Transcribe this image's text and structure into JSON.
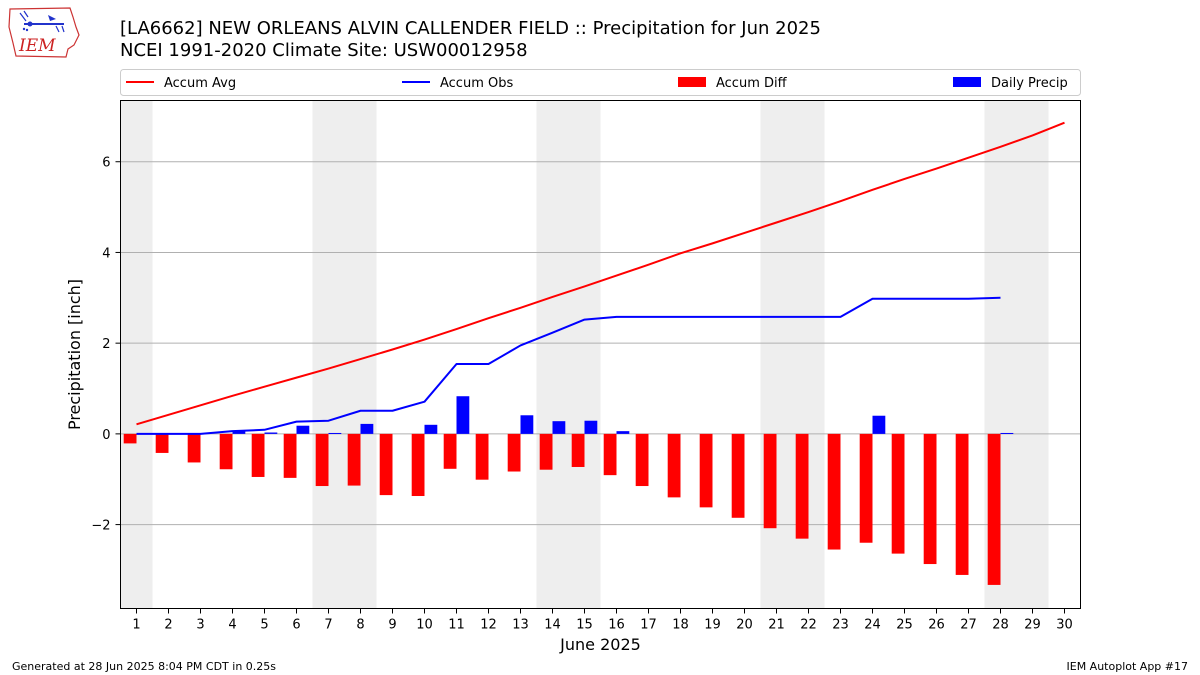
{
  "title": {
    "line1": "[LA6662] NEW ORLEANS ALVIN CALLENDER FIELD :: Precipitation for Jun 2025",
    "line2": "NCEI 1991-2020 Climate Site: USW00012958"
  },
  "logo": {
    "text": "IEM",
    "icon": "iowa-state-logo-icon"
  },
  "footer": {
    "left": "Generated at 28 Jun 2025 8:04 PM CDT in 0.25s",
    "right": "IEM Autoplot App #17"
  },
  "colors": {
    "accum_avg": "#ff0000",
    "accum_obs": "#0000ff",
    "accum_diff": "#ff0000",
    "daily_precip": "#0000ff",
    "weekend_shade": "#eeeeee",
    "grid": "#b0b0b0"
  },
  "chart_data": {
    "type": "bar",
    "xlabel": "June 2025",
    "ylabel": "Precipitation [inch]",
    "xlim": [
      0.5,
      30.5
    ],
    "ylim": [
      -3.85,
      7.35
    ],
    "yticks": [
      -2,
      0,
      2,
      4,
      6
    ],
    "ytick_labels": [
      "−2",
      "0",
      "2",
      "4",
      "6"
    ],
    "grid": "horizontal",
    "legend_position": "top",
    "days": [
      1,
      2,
      3,
      4,
      5,
      6,
      7,
      8,
      9,
      10,
      11,
      12,
      13,
      14,
      15,
      16,
      17,
      18,
      19,
      20,
      21,
      22,
      23,
      24,
      25,
      26,
      27,
      28,
      29,
      30
    ],
    "weekend_days": [
      1,
      7,
      8,
      14,
      15,
      21,
      22,
      28,
      29
    ],
    "series": [
      {
        "name": "Accum Avg",
        "kind": "line",
        "x": [
          1,
          2,
          3,
          4,
          5,
          6,
          7,
          8,
          9,
          10,
          11,
          12,
          13,
          14,
          15,
          16,
          17,
          18,
          19,
          20,
          21,
          22,
          23,
          24,
          25,
          26,
          27,
          28,
          29,
          30
        ],
        "values": [
          0.21,
          0.42,
          0.63,
          0.84,
          1.04,
          1.24,
          1.44,
          1.65,
          1.86,
          2.08,
          2.31,
          2.55,
          2.78,
          3.02,
          3.25,
          3.49,
          3.73,
          3.98,
          4.2,
          4.43,
          4.66,
          4.89,
          5.13,
          5.38,
          5.62,
          5.85,
          6.09,
          6.33,
          6.58,
          6.86
        ]
      },
      {
        "name": "Accum Obs",
        "kind": "line",
        "x": [
          1,
          2,
          3,
          4,
          5,
          6,
          7,
          8,
          9,
          10,
          11,
          12,
          13,
          14,
          15,
          16,
          17,
          18,
          19,
          20,
          21,
          22,
          23,
          24,
          25,
          26,
          27,
          28
        ],
        "values": [
          0.0,
          0.0,
          0.0,
          0.06,
          0.09,
          0.27,
          0.29,
          0.51,
          0.51,
          0.71,
          1.54,
          1.54,
          1.95,
          2.23,
          2.52,
          2.58,
          2.58,
          2.58,
          2.58,
          2.58,
          2.58,
          2.58,
          2.58,
          2.98,
          2.98,
          2.98,
          2.98,
          3.0
        ]
      },
      {
        "name": "Accum Diff",
        "kind": "bar",
        "x": [
          1,
          2,
          3,
          4,
          5,
          6,
          7,
          8,
          9,
          10,
          11,
          12,
          13,
          14,
          15,
          16,
          17,
          18,
          19,
          20,
          21,
          22,
          23,
          24,
          25,
          26,
          27,
          28
        ],
        "values": [
          -0.21,
          -0.42,
          -0.63,
          -0.78,
          -0.95,
          -0.97,
          -1.15,
          -1.14,
          -1.35,
          -1.37,
          -0.77,
          -1.01,
          -0.83,
          -0.79,
          -0.73,
          -0.91,
          -1.15,
          -1.4,
          -1.62,
          -1.85,
          -2.08,
          -2.31,
          -2.55,
          -2.4,
          -2.64,
          -2.87,
          -3.11,
          -3.33
        ]
      },
      {
        "name": "Daily Precip",
        "kind": "bar",
        "x": [
          1,
          2,
          3,
          4,
          5,
          6,
          7,
          8,
          9,
          10,
          11,
          12,
          13,
          14,
          15,
          16,
          17,
          18,
          19,
          20,
          21,
          22,
          23,
          24,
          25,
          26,
          27,
          28
        ],
        "values": [
          0,
          0,
          0,
          0.06,
          0.03,
          0.18,
          0.02,
          0.22,
          0,
          0.2,
          0.83,
          0,
          0.41,
          0.28,
          0.29,
          0.06,
          0,
          0,
          0,
          0,
          0,
          0,
          0,
          0.4,
          0,
          0,
          0,
          0.02
        ]
      }
    ]
  }
}
